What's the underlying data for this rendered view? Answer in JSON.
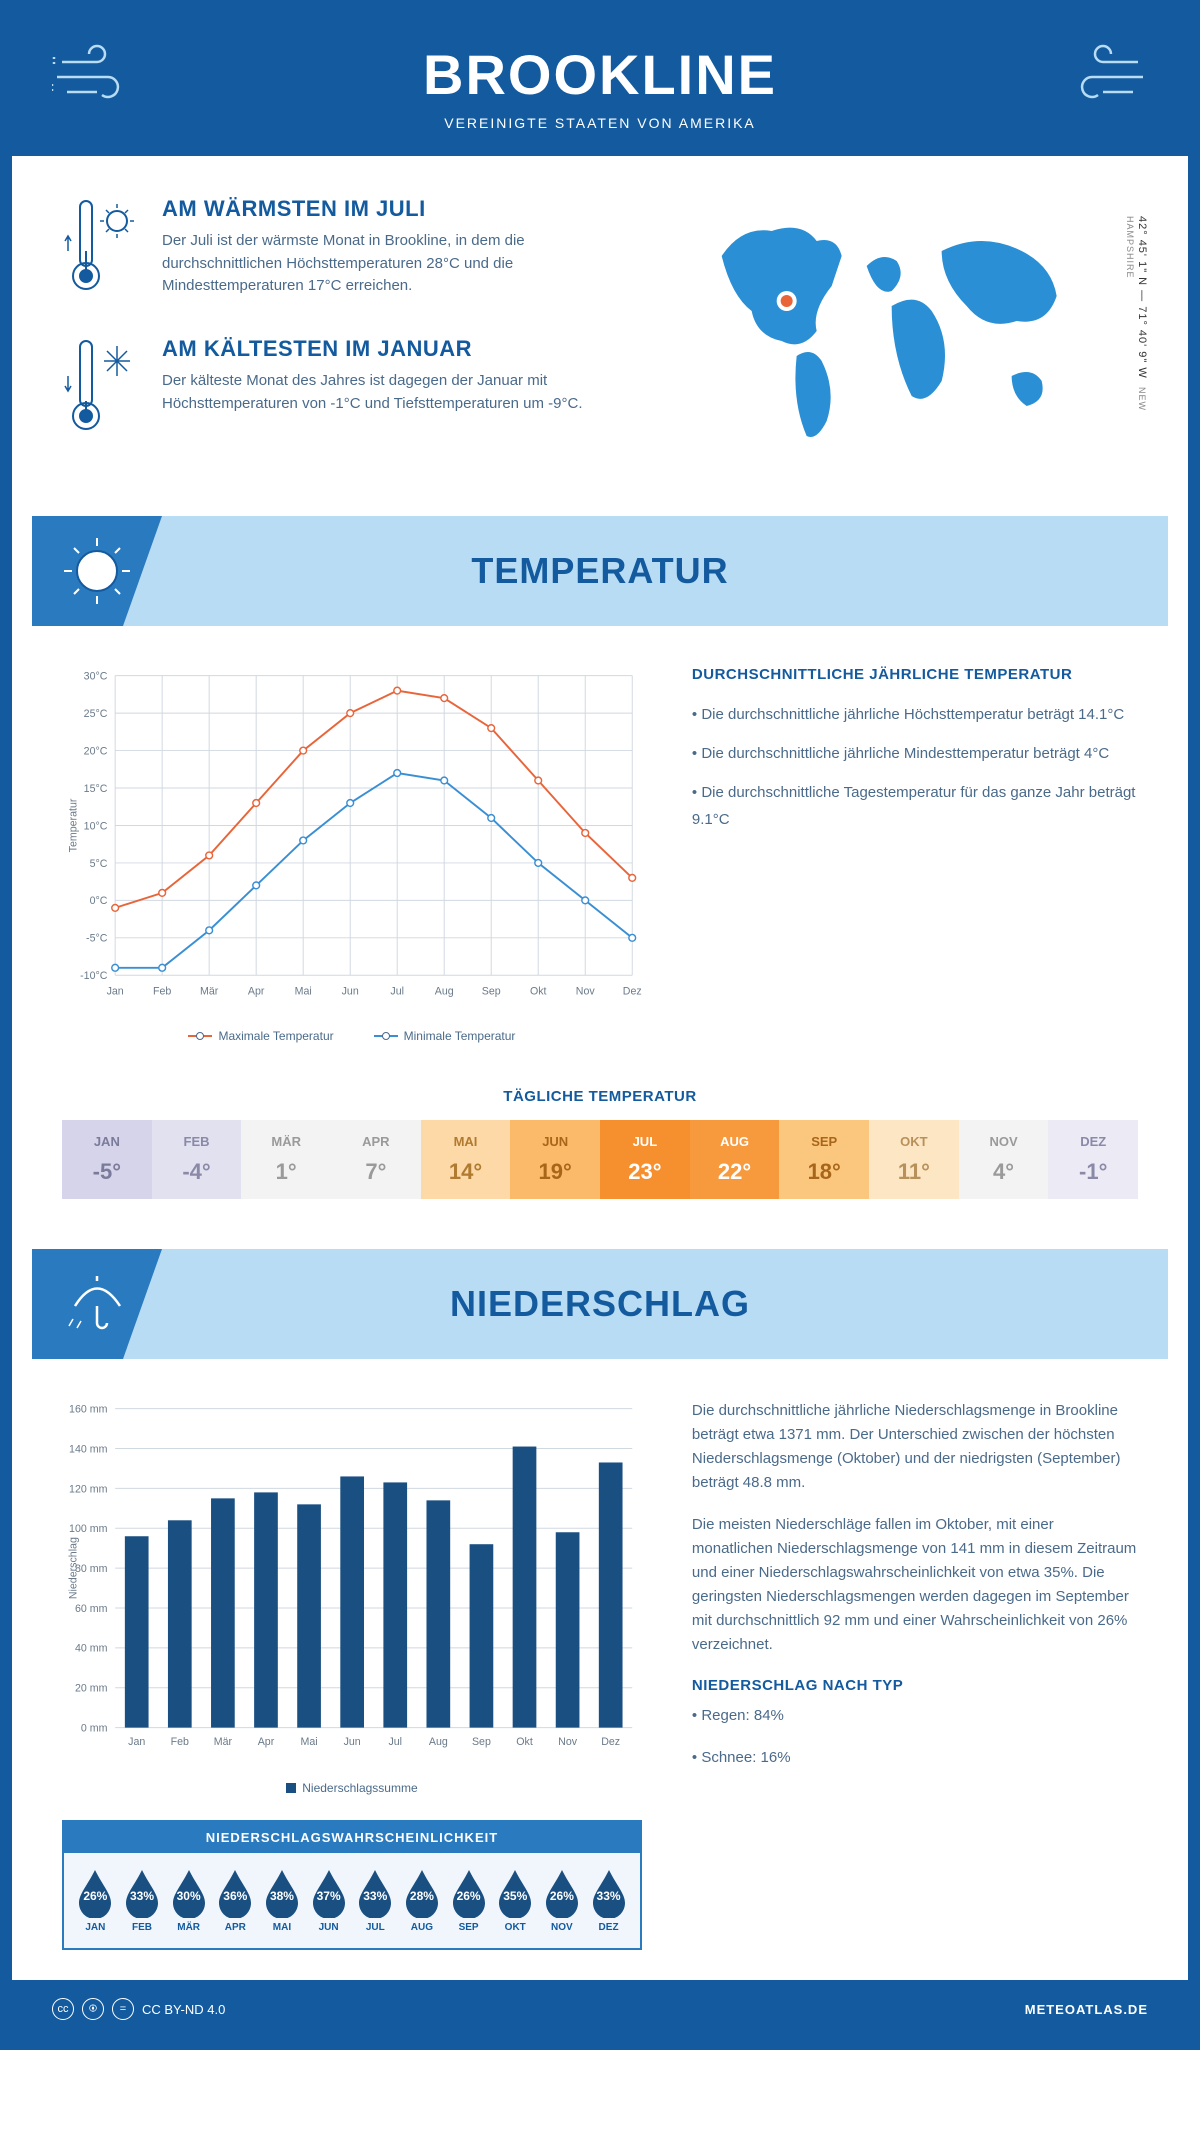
{
  "header": {
    "title": "BROOKLINE",
    "subtitle": "VEREINIGTE STAATEN VON AMERIKA"
  },
  "coords": {
    "main": "42° 45' 1\" N — 71° 40' 9\" W",
    "region": "NEW HAMPSHIRE"
  },
  "facts": {
    "warm": {
      "title": "AM WÄRMSTEN IM JULI",
      "text": "Der Juli ist der wärmste Monat in Brookline, in dem die durchschnittlichen Höchsttemperaturen 28°C und die Mindesttemperaturen 17°C erreichen."
    },
    "cold": {
      "title": "AM KÄLTESTEN IM JANUAR",
      "text": "Der kälteste Monat des Jahres ist dagegen der Januar mit Höchsttemperaturen von -1°C und Tiefsttemperaturen um -9°C."
    }
  },
  "sections": {
    "temp": "TEMPERATUR",
    "precip": "NIEDERSCHLAG"
  },
  "temp_chart": {
    "type": "line",
    "months": [
      "Jan",
      "Feb",
      "Mär",
      "Apr",
      "Mai",
      "Jun",
      "Jul",
      "Aug",
      "Sep",
      "Okt",
      "Nov",
      "Dez"
    ],
    "max_series": {
      "label": "Maximale Temperatur",
      "color": "#e8653a",
      "values": [
        -1,
        1,
        6,
        13,
        20,
        25,
        28,
        27,
        23,
        16,
        9,
        3
      ]
    },
    "min_series": {
      "label": "Minimale Temperatur",
      "color": "#3a8fd4",
      "values": [
        -9,
        -9,
        -4,
        2,
        8,
        13,
        17,
        16,
        11,
        5,
        0,
        -5
      ]
    },
    "ylabel": "Temperatur",
    "ylim": [
      -10,
      30
    ],
    "ytick_step": 5,
    "grid_color": "#d0d8e0",
    "background_color": "#ffffff",
    "line_width": 2,
    "marker": "circle"
  },
  "temp_info": {
    "heading": "DURCHSCHNITTLICHE JÄHRLICHE TEMPERATUR",
    "b1": "• Die durchschnittliche jährliche Höchsttemperatur beträgt 14.1°C",
    "b2": "• Die durchschnittliche jährliche Mindesttemperatur beträgt 4°C",
    "b3": "• Die durchschnittliche Tagestemperatur für das ganze Jahr beträgt 9.1°C"
  },
  "daily_temp": {
    "title": "TÄGLICHE TEMPERATUR",
    "months": [
      "JAN",
      "FEB",
      "MÄR",
      "APR",
      "MAI",
      "JUN",
      "JUL",
      "AUG",
      "SEP",
      "OKT",
      "NOV",
      "DEZ"
    ],
    "values": [
      "-5°",
      "-4°",
      "1°",
      "7°",
      "14°",
      "19°",
      "23°",
      "22°",
      "18°",
      "11°",
      "4°",
      "-1°"
    ],
    "bg_colors": [
      "#d6d4ea",
      "#e2e1f0",
      "#f3f3f3",
      "#f3f3f3",
      "#fcd9a6",
      "#faba6a",
      "#f6902f",
      "#f79a3e",
      "#fbc77f",
      "#fde6c4",
      "#f3f3f3",
      "#eceaf5"
    ],
    "text_colors": [
      "#7a7a9a",
      "#8a8aa8",
      "#9a9a9a",
      "#9a9a9a",
      "#b07a30",
      "#a8661a",
      "#ffffff",
      "#ffffff",
      "#a8661a",
      "#b8905a",
      "#9a9a9a",
      "#8a8aa8"
    ]
  },
  "precip_chart": {
    "type": "bar",
    "months": [
      "Jan",
      "Feb",
      "Mär",
      "Apr",
      "Mai",
      "Jun",
      "Jul",
      "Aug",
      "Sep",
      "Okt",
      "Nov",
      "Dez"
    ],
    "values": [
      96,
      104,
      115,
      118,
      112,
      126,
      123,
      114,
      92,
      141,
      98,
      133
    ],
    "bar_color": "#1a4f82",
    "ylabel": "Niederschlag",
    "ylim": [
      0,
      160
    ],
    "ytick_step": 20,
    "grid_color": "#d0d8e0",
    "legend": "Niederschlagssumme"
  },
  "precip_text": {
    "p1": "Die durchschnittliche jährliche Niederschlagsmenge in Brookline beträgt etwa 1371 mm. Der Unterschied zwischen der höchsten Niederschlagsmenge (Oktober) und der niedrigsten (September) beträgt 48.8 mm.",
    "p2": "Die meisten Niederschläge fallen im Oktober, mit einer monatlichen Niederschlagsmenge von 141 mm in diesem Zeitraum und einer Niederschlagswahrscheinlichkeit von etwa 35%. Die geringsten Niederschlagsmengen werden dagegen im September mit durchschnittlich 92 mm und einer Wahrscheinlichkeit von 26% verzeichnet.",
    "type_heading": "NIEDERSCHLAG NACH TYP",
    "type_b1": "• Regen: 84%",
    "type_b2": "• Schnee: 16%"
  },
  "prob": {
    "title": "NIEDERSCHLAGSWAHRSCHEINLICHKEIT",
    "months": [
      "JAN",
      "FEB",
      "MÄR",
      "APR",
      "MAI",
      "JUN",
      "JUL",
      "AUG",
      "SEP",
      "OKT",
      "NOV",
      "DEZ"
    ],
    "values": [
      "26%",
      "33%",
      "30%",
      "36%",
      "38%",
      "37%",
      "33%",
      "28%",
      "26%",
      "35%",
      "26%",
      "33%"
    ],
    "drop_color": "#1a4f82"
  },
  "footer": {
    "license": "CC BY-ND 4.0",
    "site": "METEOATLAS.DE"
  },
  "colors": {
    "brand": "#135a9e",
    "banner_bg": "#b7dcf4",
    "banner_corner": "#2a7abf"
  }
}
